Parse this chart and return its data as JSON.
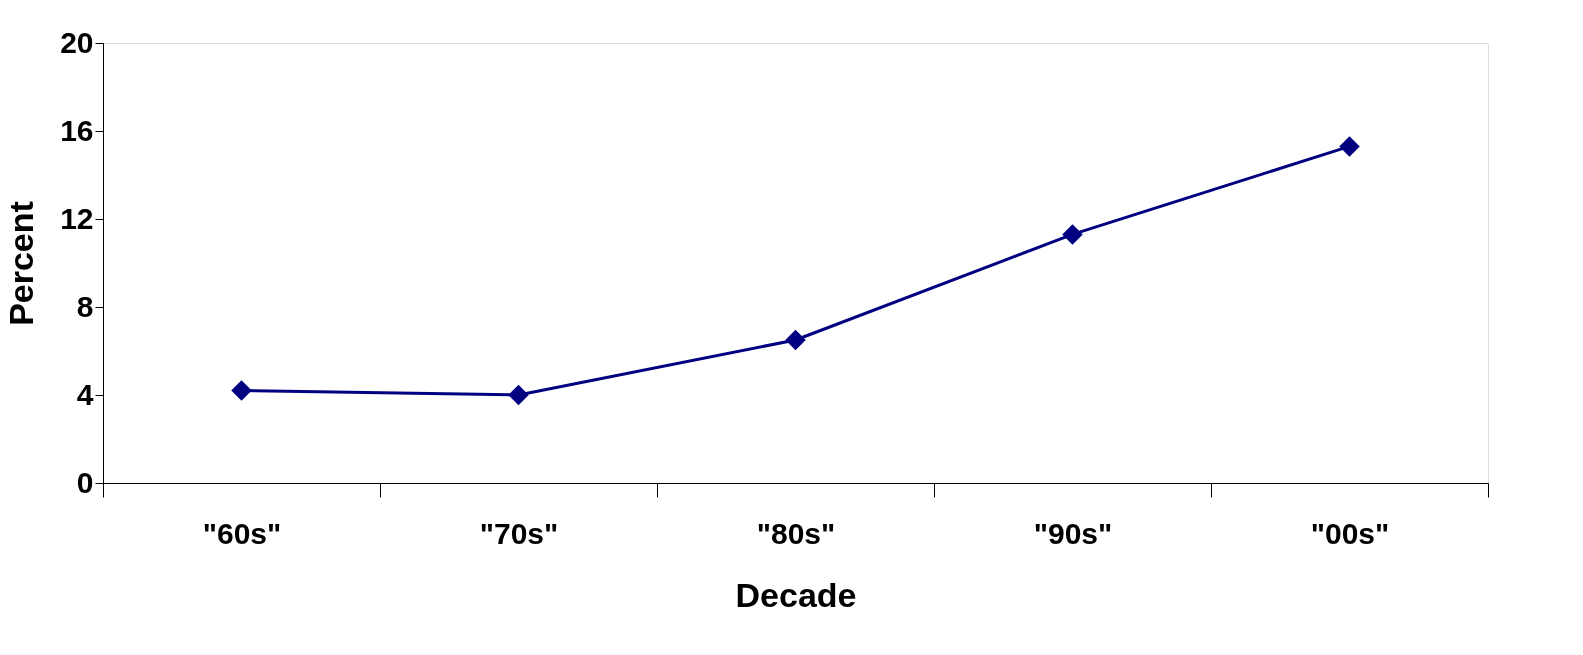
{
  "chart_data": {
    "type": "line",
    "xlabel": "Decade",
    "ylabel": "Percent",
    "categories": [
      "\"60s\"",
      "\"70s\"",
      "\"80s\"",
      "\"90s\"",
      "\"00s\""
    ],
    "series": [
      {
        "color": "#000080",
        "values": [
          4.2,
          4.0,
          6.5,
          11.3,
          15.3
        ]
      }
    ],
    "ylim": [
      0,
      20
    ],
    "yticks": [
      0,
      4,
      8,
      12,
      16,
      20
    ],
    "grid": false,
    "legend": false,
    "marker": "diamond",
    "line_style": "solid"
  }
}
